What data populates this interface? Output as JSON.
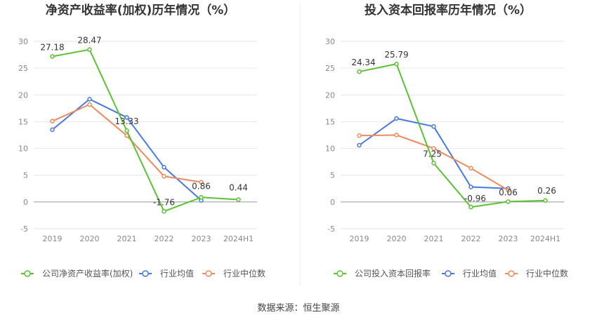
{
  "source_label": "数据来源：恒生聚源",
  "chart_data": [
    {
      "type": "line",
      "title": "净资产收益率(加权)历年情况（%）",
      "categories": [
        "2019",
        "2020",
        "2021",
        "2022",
        "2023",
        "2024H1"
      ],
      "ylim": [
        -5,
        30
      ],
      "yticks": [
        -5,
        0,
        5,
        10,
        15,
        20,
        25,
        30
      ],
      "grid": true,
      "legend_position": "bottom",
      "series": [
        {
          "name": "公司净资产收益率(加权)",
          "color": "#5cc234",
          "values": [
            27.18,
            28.47,
            13.33,
            -1.76,
            0.86,
            0.44
          ],
          "labels": [
            "27.18",
            "28.47",
            "13.33",
            "-1.76",
            "0.86",
            "0.44"
          ]
        },
        {
          "name": "行业均值",
          "color": "#4779de",
          "values": [
            13.5,
            19.2,
            15.8,
            6.5,
            0.3,
            null
          ]
        },
        {
          "name": "行业中位数",
          "color": "#f08a5d",
          "values": [
            15.1,
            18.2,
            12.4,
            4.8,
            3.7,
            null
          ]
        }
      ]
    },
    {
      "type": "line",
      "title": "投入资本回报率历年情况（%）",
      "categories": [
        "2019",
        "2020",
        "2021",
        "2022",
        "2023",
        "2024H1"
      ],
      "ylim": [
        -5,
        30
      ],
      "yticks": [
        -5,
        0,
        5,
        10,
        15,
        20,
        25,
        30
      ],
      "grid": true,
      "legend_position": "bottom",
      "series": [
        {
          "name": "公司投入资本回报率",
          "color": "#5cc234",
          "values": [
            24.34,
            25.79,
            7.25,
            -0.96,
            0.06,
            0.26
          ],
          "labels": [
            "24.34",
            "25.79",
            "7.25",
            "-0.96",
            "0.06",
            "0.26"
          ]
        },
        {
          "name": "行业均值",
          "color": "#4779de",
          "values": [
            10.6,
            15.6,
            14.1,
            2.8,
            2.5,
            null
          ]
        },
        {
          "name": "行业中位数",
          "color": "#f08a5d",
          "values": [
            12.4,
            12.5,
            10.0,
            6.3,
            2.2,
            null
          ]
        }
      ]
    }
  ]
}
